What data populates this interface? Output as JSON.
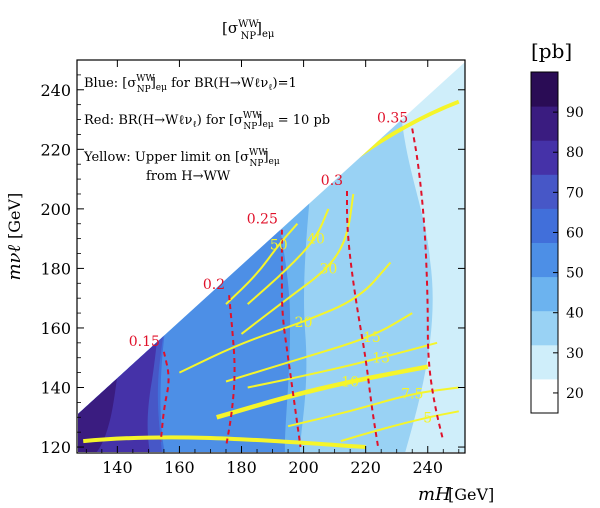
{
  "chart_data": {
    "type": "heatmap",
    "title": "[σNPWW]eμ",
    "title_parts": {
      "base": "[σ",
      "sup": "WW",
      "sub": "NP",
      "tail": "]",
      "tail_sub": "eμ"
    },
    "xlabel": "mH",
    "xlabel_sub": "",
    "xlabel_unit": "[GeV]",
    "ylabel": "mνℓ",
    "ylabel_unit": "[GeV]",
    "xlim": [
      127,
      252
    ],
    "ylim": [
      118,
      250
    ],
    "xticks": [
      140,
      160,
      180,
      200,
      220,
      240
    ],
    "yticks": [
      120,
      140,
      160,
      180,
      200,
      220,
      240
    ],
    "colorbar": {
      "label": "[pb]",
      "levels": [
        20,
        30,
        40,
        50,
        60,
        70,
        80,
        90
      ],
      "band_colors": [
        "#ffffff",
        "#cfeefa",
        "#99d2f4",
        "#6cb3ef",
        "#4d8fe6",
        "#416fda",
        "#4757c7",
        "#4532a8",
        "#3a1c80",
        "#2a0c55"
      ]
    },
    "legend_text": [
      {
        "text": "Blue: [σNPWW]eμ for BR(H→Wℓνℓ)=1",
        "parts": [
          "Blue: [σ",
          "WW",
          "NP",
          "]",
          "eμ",
          " for BR(H→Wℓν",
          "ℓ",
          ")=1"
        ]
      },
      {
        "text": "Red: BR(H→Wℓνℓ) for [σNPWW]eμ = 10 pb",
        "parts": [
          "Red: BR(H→Wℓν",
          "ℓ",
          ") for [σ",
          "WW",
          "NP",
          "]",
          "eμ",
          " = 10 pb"
        ]
      },
      {
        "text": "Yellow: Upper limit on [σNPWW]eμ",
        "parts": [
          "Yellow: Upper limit on [σ",
          "WW",
          "NP",
          "]",
          "eμ"
        ]
      },
      {
        "text": "from H→WW"
      }
    ],
    "series": [
      {
        "name": "Blue: [σNPWW]eμ",
        "kind": "filled_contour",
        "regions": [
          {
            "level_range": [
              90,
              100
            ],
            "approx_x_range": [
              129,
              141
            ]
          },
          {
            "level_range": [
              80,
              90
            ],
            "approx_x_range": [
              141,
              155
            ]
          },
          {
            "level_range": [
              70,
              80
            ],
            "approx_x_range": [
              150,
              162
            ]
          },
          {
            "level_range": [
              60,
              70
            ],
            "approx_x_range": [
              162,
              188
            ]
          },
          {
            "level_range": [
              50,
              60
            ],
            "approx_x_range": [
              188,
              200
            ]
          },
          {
            "level_range": [
              40,
              50
            ],
            "approx_x_range": [
              200,
              232
            ]
          },
          {
            "level_range": [
              30,
              40
            ],
            "approx_x_range": [
              232,
              246
            ]
          },
          {
            "level_range": [
              20,
              30
            ],
            "approx_x_range": [
              246,
              250
            ]
          }
        ]
      },
      {
        "name": "Red: BR(H→Wℓνℓ)",
        "kind": "dashed_contour",
        "color": "#e0112a",
        "lines": [
          {
            "label": "0.15",
            "points": [
              [
                155,
                152
              ],
              [
                157,
                143
              ],
              [
                155,
                133
              ],
              [
                154,
                122
              ]
            ]
          },
          {
            "label": "0.2",
            "points": [
              [
                176,
                171
              ],
              [
                177,
                160
              ],
              [
                178,
                146
              ],
              [
                177,
                132
              ],
              [
                175,
                120
              ]
            ]
          },
          {
            "label": "0.25",
            "points": [
              [
                193,
                193
              ],
              [
                193,
                180
              ],
              [
                193,
                165
              ],
              [
                195,
                150
              ],
              [
                197,
                135
              ],
              [
                199,
                120
              ]
            ]
          },
          {
            "label": "0.3",
            "points": [
              [
                214,
                206
              ],
              [
                214,
                195
              ],
              [
                215,
                183
              ],
              [
                217,
                168
              ],
              [
                220,
                150
              ],
              [
                222,
                133
              ],
              [
                224,
                120
              ]
            ]
          },
          {
            "label": "0.35",
            "points": [
              [
                235,
                227
              ],
              [
                237,
                215
              ],
              [
                239,
                195
              ],
              [
                240,
                170
              ],
              [
                240,
                150
              ],
              [
                242,
                135
              ],
              [
                245,
                122
              ]
            ]
          }
        ]
      },
      {
        "name": "Yellow: Upper limit on [σNPWW]eμ",
        "kind": "contour",
        "color": "#f5f52a",
        "labels": [
          "50",
          "40",
          "30",
          "20",
          "15",
          "13",
          "10",
          "7.5",
          "5"
        ],
        "lines": [
          {
            "label": "50",
            "points": [
              [
                175,
                168
              ],
              [
                185,
                178
              ],
              [
                192,
                188
              ],
              [
                198,
                195
              ]
            ]
          },
          {
            "label": "40",
            "points": [
              [
                182,
                168
              ],
              [
                195,
                180
              ],
              [
                204,
                190
              ],
              [
                208,
                200
              ]
            ]
          },
          {
            "label": "30",
            "points": [
              [
                180,
                158
              ],
              [
                195,
                170
              ],
              [
                208,
                180
              ],
              [
                214,
                190
              ],
              [
                216,
                205
              ]
            ]
          },
          {
            "label": "20",
            "points": [
              [
                160,
                145
              ],
              [
                180,
                155
              ],
              [
                200,
                162
              ],
              [
                218,
                170
              ],
              [
                228,
                182
              ]
            ]
          },
          {
            "label": "15",
            "points": [
              [
                175,
                142
              ],
              [
                200,
                150
              ],
              [
                222,
                157
              ],
              [
                235,
                165
              ]
            ]
          },
          {
            "label": "13",
            "points": [
              [
                182,
                140
              ],
              [
                205,
                145
              ],
              [
                225,
                150
              ],
              [
                243,
                155
              ]
            ]
          },
          {
            "label": "10",
            "points": [
              [
                172,
                130
              ],
              [
                195,
                137
              ],
              [
                215,
                142
              ],
              [
                240,
                147
              ]
            ]
          },
          {
            "label": "7.5",
            "points": [
              [
                195,
                127
              ],
              [
                215,
                132
              ],
              [
                235,
                138
              ],
              [
                250,
                140
              ]
            ]
          },
          {
            "label": "5",
            "points": [
              [
                212,
                122
              ],
              [
                225,
                126
              ],
              [
                240,
                130
              ],
              [
                250,
                132
              ]
            ]
          }
        ]
      }
    ]
  }
}
